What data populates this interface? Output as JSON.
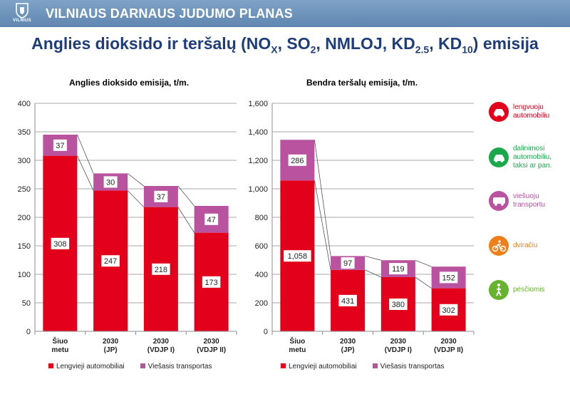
{
  "header": {
    "logo_text": "VILNIUS",
    "banner_title": "VILNIAUS DARNAUS JUDUMO PLANAS"
  },
  "page_title": {
    "prefix": "Anglies dioksido ir teršalų (NO",
    "sub1": "X",
    "mid1": ", SO",
    "sub2": "2",
    "mid2": ", NMLOJ, KD",
    "sub3": "2.5",
    "mid3": ", KD",
    "sub4": "10",
    "suffix": ") emisija"
  },
  "colors": {
    "car": "#e3001b",
    "transit": "#b9529f",
    "shared": "#1aa84b",
    "bike": "#ee7f1a",
    "walk": "#66b32e"
  },
  "chart_data": [
    {
      "type": "bar",
      "stacked": true,
      "title": "Anglies dioksido emisija, t/m.",
      "categories": [
        [
          "Šiuo",
          "metu"
        ],
        [
          "2030",
          "(JP)"
        ],
        [
          "2030",
          "(VDJP I)"
        ],
        [
          "2030",
          "(VDJP II)"
        ]
      ],
      "series": [
        {
          "name": "Lengvieji automobiliai",
          "values": [
            308,
            247,
            218,
            173
          ],
          "value_labels": [
            "308",
            "247",
            "218",
            "173"
          ]
        },
        {
          "name": "Viešasis transportas",
          "values": [
            37,
            30,
            37,
            47
          ],
          "value_labels": [
            "37",
            "30",
            "37",
            "47"
          ]
        }
      ],
      "ylim": [
        0,
        400
      ],
      "yticks": [
        0,
        50,
        100,
        150,
        200,
        250,
        300,
        350,
        400
      ],
      "ytick_labels": [
        "0",
        "50",
        "100",
        "150",
        "200",
        "250",
        "300",
        "350",
        "400"
      ],
      "grid": true,
      "legend_position": "bottom"
    },
    {
      "type": "bar",
      "stacked": true,
      "title": "Bendra teršalų emisija, t/m.",
      "categories": [
        [
          "Šiuo",
          "metu"
        ],
        [
          "2030",
          "(JP)"
        ],
        [
          "2030",
          "(VDJP I)"
        ],
        [
          "2030",
          "(VDJP II)"
        ]
      ],
      "series": [
        {
          "name": "Lengvieji automobiliai",
          "values": [
            1058,
            431,
            380,
            302
          ],
          "value_labels": [
            "1,058",
            "431",
            "380",
            "302"
          ]
        },
        {
          "name": "Viešasis transportas",
          "values": [
            286,
            97,
            119,
            152
          ],
          "value_labels": [
            "286",
            "97",
            "119",
            "152"
          ]
        }
      ],
      "ylim": [
        0,
        1600
      ],
      "yticks": [
        0,
        200,
        400,
        600,
        800,
        1000,
        1200,
        1400,
        1600
      ],
      "ytick_labels": [
        "0",
        "200",
        "400",
        "600",
        "800",
        "1,000",
        "1,200",
        "1,400",
        "1,600"
      ],
      "grid": true,
      "legend_position": "bottom"
    }
  ],
  "legend": {
    "car_label": "Lengvieji automobiliai",
    "transit_label": "Viešasis transportas"
  },
  "modes": [
    {
      "id": "car",
      "icon": "car-icon",
      "lines": [
        "lengvuoju",
        "automobiliu"
      ],
      "color": "#e3001b"
    },
    {
      "id": "shared",
      "icon": "shared-car-icon",
      "lines": [
        "dalinimosi",
        "automobiliu,",
        "taksi ar pan."
      ],
      "color": "#1aa84b"
    },
    {
      "id": "transit",
      "icon": "bus-icon",
      "lines": [
        "viešuoju",
        "transportu"
      ],
      "color": "#b9529f"
    },
    {
      "id": "bike",
      "icon": "bicycle-icon",
      "lines": [
        "dviračiu"
      ],
      "color": "#ee7f1a"
    },
    {
      "id": "walk",
      "icon": "pedestrian-icon",
      "lines": [
        "pėsčiomis"
      ],
      "color": "#66b32e"
    }
  ]
}
